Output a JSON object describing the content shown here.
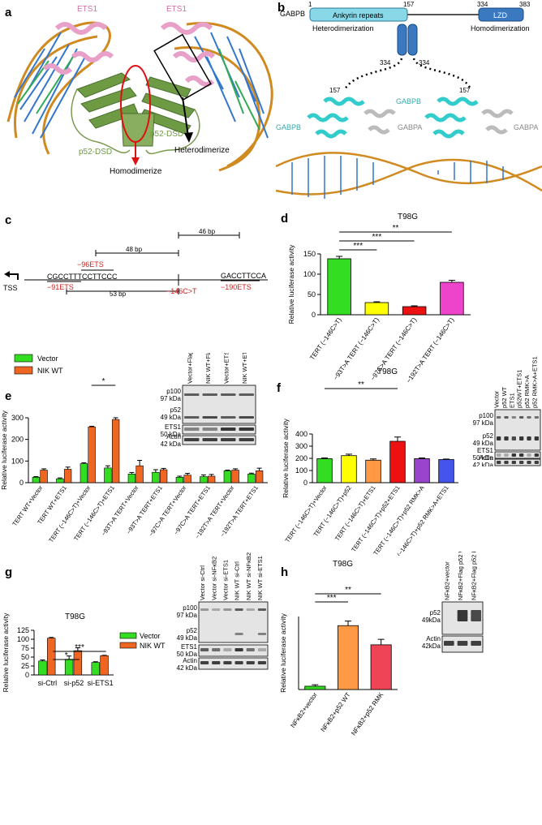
{
  "panel_letters": {
    "a": "a",
    "b": "b",
    "c": "c",
    "d": "d",
    "e": "e",
    "f": "f",
    "g": "g",
    "h": "h"
  },
  "panel_a": {
    "ets1_left": "ETS1",
    "ets1_right": "ETS1",
    "p52_left": "p52-DSD",
    "p52_right": "p52-DSD",
    "homodimerize": "Homodimerize",
    "heterodimerize": "Heterodimerize"
  },
  "panel_b": {
    "gabpb": "GABPB",
    "start": "1",
    "pos157": "157",
    "pos334": "334",
    "pos383": "383",
    "ankyrin": "Ankyrin repeats",
    "lzd": "LZD",
    "hetero": "Heterodimerization",
    "homo": "Homodimerization",
    "cyl_left": "334",
    "cyl_right": "334",
    "l157": "157",
    "r157": "157",
    "gabpb_left": "GABPB",
    "gabpb_mid": "GABPB",
    "gabpa_mid": "GABPA",
    "gabpa_right": "GABPA"
  },
  "panel_c": {
    "bp46": "46 bp",
    "bp48": "48 bp",
    "bp53": "53 bp",
    "m96": "−96ETS",
    "m91": "−91ETS",
    "seq1": "CGCCTTTCCTTCCC",
    "mut": "−146C>T",
    "seq2": "GACCTTCCA",
    "m190": "−190ETS",
    "tss": "TSS"
  },
  "colors": {
    "green": "#33dd22",
    "yellow": "#ffff00",
    "red": "#ee1111",
    "magenta": "#ee44cc",
    "orange": "#ee6622",
    "lightorange": "#ff9944",
    "purple": "#9944cc",
    "blue": "#4455ee",
    "sigred": "#cc2222",
    "pink": "#e8a0c8",
    "olive": "#7a9a50",
    "cyan": "#33cccc"
  },
  "blots": {
    "e": {
      "lanes": [
        "Vector+Flag vector",
        "NIK WT+Flag vector",
        "Vector+ETS1",
        "NIK WT+ETS1"
      ],
      "labels": [
        [
          "p100",
          "97 kDa"
        ],
        [
          "p52",
          "49 kDa"
        ],
        [
          "ETS1",
          "50 kDa"
        ],
        [
          "Actin",
          "42 kDa"
        ]
      ]
    },
    "f": {
      "lanes": [
        "Vector",
        "p52 WT",
        "ETS1",
        "p52WT+ETS1",
        "p52 RMK>A",
        "p52 RMK>A+ETS1"
      ],
      "labels": [
        [
          "p100",
          "97 kDa"
        ],
        [
          "p52",
          "49 kDa"
        ],
        [
          "ETS1",
          "50 kDa"
        ],
        [
          "Actin",
          "42 kDa"
        ]
      ]
    },
    "g": {
      "lanes": [
        "Vector si-Ctrl",
        "Vector si-NFκB2",
        "Vector si-ETS1",
        "NIK WT si-Ctrl",
        "NIK WT si-NFκB2",
        "NIK WT si-ETS1"
      ],
      "labels": [
        [
          "p100",
          "97 kDa"
        ],
        [
          "p52",
          "49 kDa"
        ],
        [
          "ETS1",
          "50 kDa"
        ],
        [
          "Actin",
          "42 kDa"
        ]
      ]
    },
    "h": {
      "lanes": [
        "NFκB2+vector",
        "NFκB2+Flag p52 WT",
        "NFκB2+Flag p52 RMK"
      ],
      "labels": [
        [
          "p52",
          "49kDa"
        ],
        [
          "Actin",
          "42kDa"
        ]
      ]
    }
  },
  "chart_data": [
    {
      "id": "d",
      "type": "bar",
      "title": "T98G",
      "ylabel": "Relative luciferase activity",
      "ylim": [
        0,
        150
      ],
      "yticks": [
        0,
        50,
        100,
        150
      ],
      "categories": [
        "TERT (−146C>T)",
        "−93T>A TERT (−146C>T)",
        "−97C>A TERT (−146C>T)",
        "−192T>A TERT (−146C>T)"
      ],
      "values": [
        138,
        30,
        20,
        80
      ],
      "errors": [
        6,
        2,
        2,
        5
      ],
      "colors": [
        "#33dd22",
        "#ffff00",
        "#ee1111",
        "#ee44cc"
      ],
      "sig": [
        {
          "label": "***"
        },
        {
          "label": "***"
        },
        {
          "label": "**"
        }
      ]
    },
    {
      "id": "e",
      "type": "bar",
      "ylabel": "Relative luciferase activity",
      "ylim": [
        0,
        300
      ],
      "yticks": [
        0,
        100,
        200,
        300
      ],
      "categories": [
        "TERT WT+Vector",
        "TERT WT+ETS1",
        "TERT (−146C>T)+Vector",
        "TERT (−146C>T)+ETS1",
        "−93T>A TERT+Vector",
        "−93T>A TERT+ETS1",
        "−97C>A TERT+Vector",
        "−97C>A TERT+ETS1",
        "−192T>A TERT+Vector",
        "−192T>A TERT+ETS1"
      ],
      "series": [
        {
          "name": "Vector",
          "values": [
            25,
            18,
            88,
            68,
            40,
            48,
            25,
            28,
            55,
            40
          ],
          "errors": [
            3,
            4,
            4,
            10,
            7,
            12,
            5,
            8,
            3,
            4
          ]
        },
        {
          "name": "NIK WT",
          "values": [
            58,
            62,
            258,
            292,
            78,
            60,
            35,
            30,
            58,
            55
          ],
          "errors": [
            6,
            10,
            3,
            8,
            25,
            6,
            8,
            8,
            6,
            12
          ]
        }
      ],
      "sig": [
        {
          "label": "*"
        }
      ]
    },
    {
      "id": "f",
      "type": "bar",
      "title": "T98G",
      "ylabel": "Relative luciferase activity",
      "ylim": [
        0,
        400
      ],
      "yticks": [
        0,
        100,
        200,
        300,
        400
      ],
      "categories": [
        "TERT (−146C>T)+Vector",
        "TERT (−146C>T)+p52",
        "TERT (−146C>T)+ETS1",
        "TERT (−146C>T)+p52+ETS1",
        "TERT (−146C>T)+p52 RMK>A",
        "TERT (−146C>T)+p52 RMK>A+ETS1"
      ],
      "values": [
        197,
        222,
        185,
        340,
        197,
        190
      ],
      "errors": [
        6,
        12,
        10,
        35,
        6,
        4
      ],
      "colors": [
        "#33dd22",
        "#ffff00",
        "#ff9944",
        "#ee1111",
        "#9944cc",
        "#4455ee"
      ],
      "sig": [
        {
          "label": "**"
        }
      ]
    },
    {
      "id": "g",
      "type": "bar",
      "title": "T98G",
      "ylabel": "Relative luciferase activity",
      "ylim": [
        0,
        125
      ],
      "yticks": [
        0,
        25,
        50,
        75,
        100,
        125
      ],
      "categories": [
        "si-Ctrl",
        "si-p52",
        "si-ETS1"
      ],
      "series": [
        {
          "name": "Vector",
          "values": [
            39,
            44,
            35
          ],
          "errors": [
            3,
            9,
            2
          ]
        },
        {
          "name": "NIK WT",
          "values": [
            103,
            68,
            54
          ],
          "errors": [
            2,
            8,
            1
          ]
        }
      ],
      "sig": [
        {
          "label": "*"
        },
        {
          "label": "***"
        }
      ]
    },
    {
      "id": "h",
      "type": "bar",
      "title": "T98G",
      "ylabel": "Relative luciferase activity",
      "ylim": [
        0,
        400
      ],
      "categories": [
        "NFκB2+vector",
        "NFκB2+p52 WT",
        "NFκB2+p52 RMK"
      ],
      "values": [
        18,
        350,
        245
      ],
      "errors": [
        8,
        25,
        30
      ],
      "colors": [
        "#33dd22",
        "#ff9944",
        "#ee4455"
      ],
      "sig": [
        {
          "label": "***"
        },
        {
          "label": "**"
        }
      ]
    }
  ]
}
